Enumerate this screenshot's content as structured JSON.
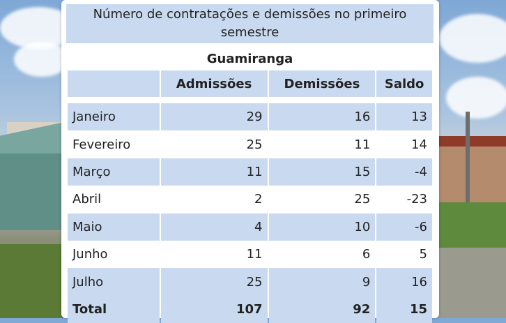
{
  "table": {
    "title": "Número de contratações e demissões no primeiro semestre",
    "subtitle": "Guamiranga",
    "columns": [
      "",
      "Admissões",
      "Demissões",
      "Saldo"
    ],
    "rows": [
      {
        "month": "Janeiro",
        "admissoes": "29",
        "demissoes": "16",
        "saldo": "13"
      },
      {
        "month": "Fevereiro",
        "admissoes": "25",
        "demissoes": "11",
        "saldo": "14"
      },
      {
        "month": "Março",
        "admissoes": "11",
        "demissoes": "15",
        "saldo": "-4"
      },
      {
        "month": "Abril",
        "admissoes": "2",
        "demissoes": "25",
        "saldo": "-23"
      },
      {
        "month": "Maio",
        "admissoes": "4",
        "demissoes": "10",
        "saldo": "-6"
      },
      {
        "month": "Junho",
        "admissoes": "11",
        "demissoes": "6",
        "saldo": "5"
      },
      {
        "month": "Julho",
        "admissoes": "25",
        "demissoes": "9",
        "saldo": "16"
      }
    ],
    "total": {
      "label": "Total",
      "admissoes": "107",
      "demissoes": "92",
      "saldo": "15"
    }
  },
  "colors": {
    "header_band": "#c9daf0",
    "panel": "#ffffff"
  }
}
